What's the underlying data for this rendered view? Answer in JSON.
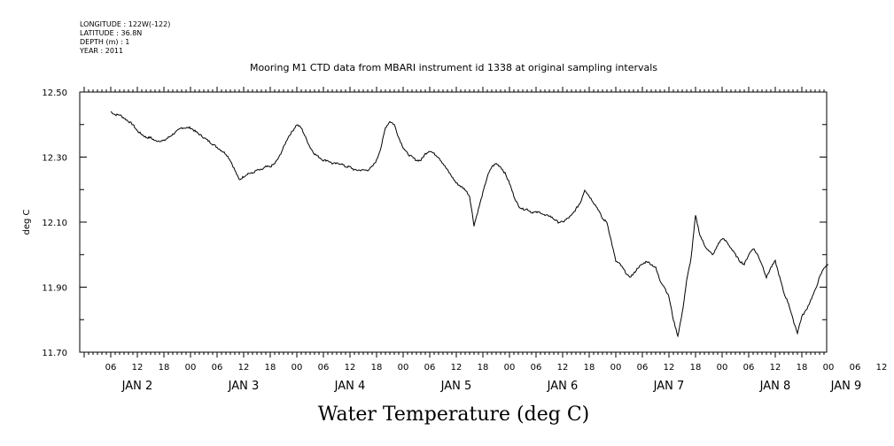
{
  "metadata": [
    "LONGITUDE : 122W(-122)",
    "LATITUDE : 36.8N",
    "DEPTH (m) : 1",
    "YEAR : 2011"
  ],
  "chart_data": {
    "type": "line",
    "title": "Mooring M1 CTD data from MBARI instrument id 1338 at original sampling intervals",
    "xlabel": "Water Temperature (deg C)",
    "ylabel": "deg C",
    "ylim": [
      11.7,
      12.5
    ],
    "yticks": [
      "12.50",
      "12.30",
      "12.10",
      "11.90",
      "11.70"
    ],
    "xlim_hours": [
      0,
      168
    ],
    "x_hour_labels": [
      "06",
      "12",
      "18",
      "00",
      "06",
      "12",
      "18",
      "00",
      "06",
      "12",
      "18",
      "00",
      "06",
      "12",
      "18",
      "00",
      "06",
      "12",
      "18",
      "00",
      "06",
      "12",
      "18",
      "00",
      "06",
      "12",
      "18",
      "00",
      "06",
      "12",
      "18",
      "00"
    ],
    "x_day_labels": [
      "JAN  2",
      "JAN  3",
      "JAN  4",
      "JAN  5",
      "JAN  6",
      "JAN  7",
      "JAN  8",
      "JAN  9"
    ],
    "x_units": "hours since JAN 2 00:00",
    "series": [
      {
        "values": [
          [
            6.0,
            12.44
          ],
          [
            7.0,
            12.43
          ],
          [
            8.0,
            12.43
          ],
          [
            9.0,
            12.42
          ],
          [
            10.0,
            12.41
          ],
          [
            11.0,
            12.4
          ],
          [
            12.0,
            12.38
          ],
          [
            13.0,
            12.37
          ],
          [
            14.0,
            12.36
          ],
          [
            15.0,
            12.36
          ],
          [
            16.0,
            12.35
          ],
          [
            17.0,
            12.35
          ],
          [
            18.0,
            12.35
          ],
          [
            19.0,
            12.36
          ],
          [
            20.0,
            12.37
          ],
          [
            21.0,
            12.38
          ],
          [
            22.0,
            12.39
          ],
          [
            23.0,
            12.39
          ],
          [
            24.0,
            12.39
          ],
          [
            25.0,
            12.38
          ],
          [
            26.0,
            12.37
          ],
          [
            27.0,
            12.36
          ],
          [
            28.0,
            12.35
          ],
          [
            29.0,
            12.34
          ],
          [
            30.0,
            12.33
          ],
          [
            31.0,
            12.32
          ],
          [
            32.0,
            12.31
          ],
          [
            33.0,
            12.29
          ],
          [
            34.0,
            12.26
          ],
          [
            35.0,
            12.23
          ],
          [
            36.0,
            12.24
          ],
          [
            37.0,
            12.25
          ],
          [
            38.0,
            12.25
          ],
          [
            39.0,
            12.26
          ],
          [
            40.0,
            12.26
          ],
          [
            41.0,
            12.27
          ],
          [
            42.0,
            12.27
          ],
          [
            43.0,
            12.28
          ],
          [
            44.0,
            12.3
          ],
          [
            45.0,
            12.33
          ],
          [
            46.0,
            12.36
          ],
          [
            47.0,
            12.38
          ],
          [
            48.0,
            12.4
          ],
          [
            49.0,
            12.39
          ],
          [
            50.0,
            12.36
          ],
          [
            51.0,
            12.33
          ],
          [
            52.0,
            12.31
          ],
          [
            53.0,
            12.3
          ],
          [
            54.0,
            12.29
          ],
          [
            55.0,
            12.29
          ],
          [
            56.0,
            12.28
          ],
          [
            57.0,
            12.28
          ],
          [
            58.0,
            12.28
          ],
          [
            59.0,
            12.27
          ],
          [
            60.0,
            12.27
          ],
          [
            61.0,
            12.26
          ],
          [
            62.0,
            12.26
          ],
          [
            63.0,
            12.26
          ],
          [
            64.0,
            12.26
          ],
          [
            65.0,
            12.27
          ],
          [
            66.0,
            12.29
          ],
          [
            67.0,
            12.33
          ],
          [
            68.0,
            12.39
          ],
          [
            69.0,
            12.41
          ],
          [
            70.0,
            12.4
          ],
          [
            71.0,
            12.36
          ],
          [
            72.0,
            12.33
          ],
          [
            73.0,
            12.31
          ],
          [
            74.0,
            12.3
          ],
          [
            75.0,
            12.29
          ],
          [
            76.0,
            12.29
          ],
          [
            77.0,
            12.31
          ],
          [
            78.0,
            12.32
          ],
          [
            79.0,
            12.31
          ],
          [
            80.0,
            12.3
          ],
          [
            81.0,
            12.28
          ],
          [
            82.0,
            12.26
          ],
          [
            83.0,
            12.24
          ],
          [
            84.0,
            12.22
          ],
          [
            85.0,
            12.21
          ],
          [
            86.0,
            12.2
          ],
          [
            87.0,
            12.18
          ],
          [
            88.0,
            12.09
          ],
          [
            89.0,
            12.14
          ],
          [
            90.0,
            12.19
          ],
          [
            91.0,
            12.24
          ],
          [
            92.0,
            12.27
          ],
          [
            93.0,
            12.28
          ],
          [
            94.0,
            12.27
          ],
          [
            95.0,
            12.25
          ],
          [
            96.0,
            12.22
          ],
          [
            97.0,
            12.18
          ],
          [
            98.0,
            12.15
          ],
          [
            99.0,
            12.14
          ],
          [
            100.0,
            12.14
          ],
          [
            101.0,
            12.13
          ],
          [
            102.0,
            12.13
          ],
          [
            103.0,
            12.13
          ],
          [
            104.0,
            12.12
          ],
          [
            105.0,
            12.12
          ],
          [
            106.0,
            12.11
          ],
          [
            107.0,
            12.1
          ],
          [
            108.0,
            12.1
          ],
          [
            109.0,
            12.11
          ],
          [
            110.0,
            12.12
          ],
          [
            111.0,
            12.14
          ],
          [
            112.0,
            12.16
          ],
          [
            113.0,
            12.2
          ],
          [
            114.0,
            12.18
          ],
          [
            115.0,
            12.16
          ],
          [
            116.0,
            12.14
          ],
          [
            117.0,
            12.11
          ],
          [
            118.0,
            12.1
          ],
          [
            119.0,
            12.04
          ],
          [
            120.0,
            11.98
          ],
          [
            121.0,
            11.97
          ],
          [
            122.0,
            11.95
          ],
          [
            123.0,
            11.93
          ],
          [
            124.0,
            11.94
          ],
          [
            125.0,
            11.96
          ],
          [
            126.0,
            11.97
          ],
          [
            127.0,
            11.98
          ],
          [
            128.0,
            11.97
          ],
          [
            129.0,
            11.96
          ],
          [
            130.0,
            11.92
          ],
          [
            131.0,
            11.9
          ],
          [
            132.0,
            11.87
          ],
          [
            133.0,
            11.8
          ],
          [
            134.0,
            11.75
          ],
          [
            135.0,
            11.82
          ],
          [
            136.0,
            11.92
          ],
          [
            137.0,
            11.99
          ],
          [
            138.0,
            12.12
          ],
          [
            139.0,
            12.06
          ],
          [
            140.0,
            12.03
          ],
          [
            141.0,
            12.01
          ],
          [
            142.0,
            12.0
          ],
          [
            143.0,
            12.03
          ],
          [
            144.0,
            12.05
          ],
          [
            145.0,
            12.04
          ],
          [
            146.0,
            12.02
          ],
          [
            147.0,
            12.0
          ],
          [
            148.0,
            11.98
          ],
          [
            149.0,
            11.97
          ],
          [
            150.0,
            12.0
          ],
          [
            151.0,
            12.02
          ],
          [
            152.0,
            12.0
          ],
          [
            153.0,
            11.97
          ],
          [
            154.0,
            11.93
          ],
          [
            155.0,
            11.96
          ],
          [
            156.0,
            11.98
          ],
          [
            157.0,
            11.93
          ],
          [
            158.0,
            11.88
          ],
          [
            159.0,
            11.85
          ],
          [
            160.0,
            11.8
          ],
          [
            161.0,
            11.76
          ],
          [
            162.0,
            11.81
          ],
          [
            163.0,
            11.83
          ],
          [
            164.0,
            11.86
          ],
          [
            165.0,
            11.89
          ],
          [
            166.0,
            11.93
          ],
          [
            167.0,
            11.96
          ],
          [
            168.0,
            11.97
          ]
        ]
      }
    ],
    "grid": false
  }
}
